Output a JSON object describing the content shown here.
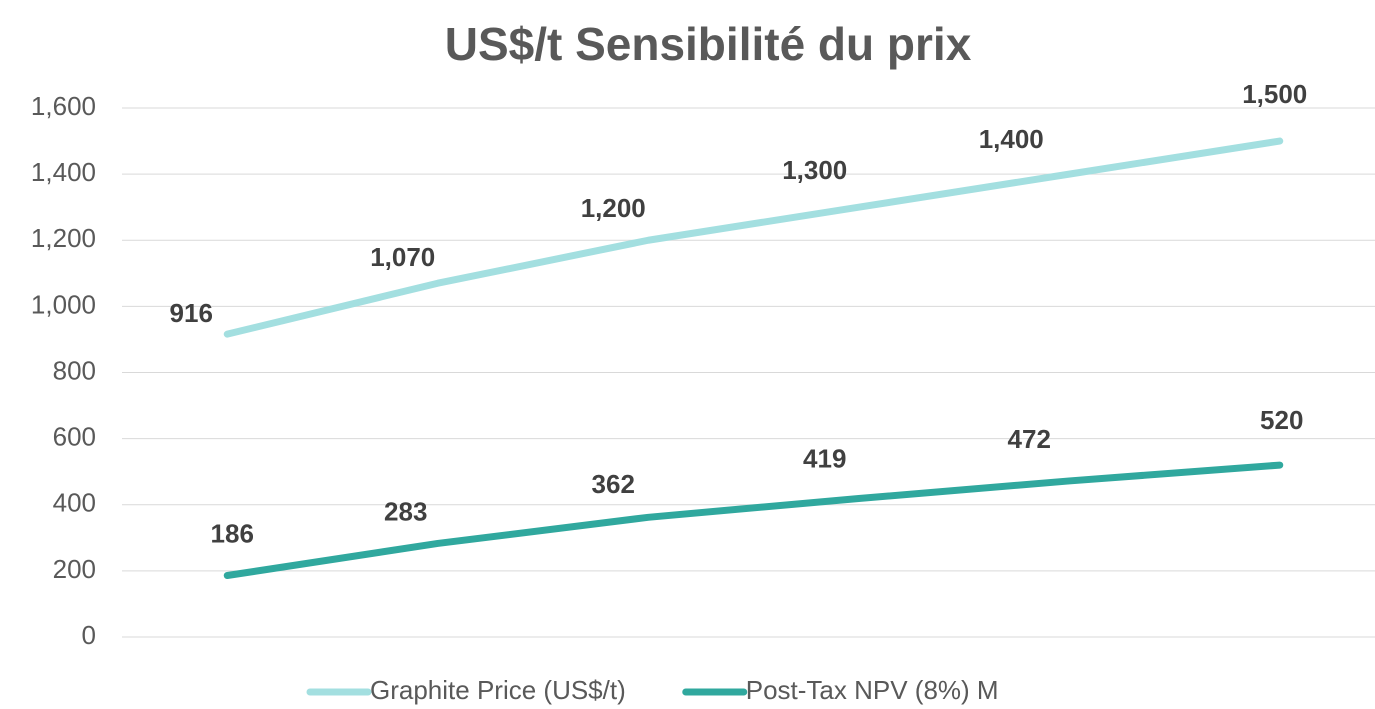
{
  "chart_data": {
    "type": "line",
    "title": "US$/t Sensibilité du prix",
    "categories": [
      null,
      null,
      null,
      null,
      null,
      null
    ],
    "series": [
      {
        "name": "Graphite Price (US$/t)",
        "color": "#a3dfe0",
        "values": [
          916,
          1070,
          1200,
          1300,
          1400,
          1500
        ],
        "value_labels": [
          "916",
          "1,070",
          "1,200",
          "1,300",
          "1,400",
          "1,500"
        ]
      },
      {
        "name": "Post-Tax NPV (8%) M",
        "color": "#30a89e",
        "values": [
          186,
          283,
          362,
          419,
          472,
          520
        ]
      }
    ],
    "ylim": [
      0,
      1600
    ],
    "yticks": [
      0,
      200,
      400,
      600,
      800,
      {
        "value": 1000,
        "label": "1,000"
      },
      {
        "value": 1200,
        "label": "1,200"
      },
      {
        "value": 1400,
        "label": "1,400"
      },
      {
        "value": 1600,
        "label": "1,600"
      }
    ],
    "grid": true,
    "legend": "bottom"
  }
}
